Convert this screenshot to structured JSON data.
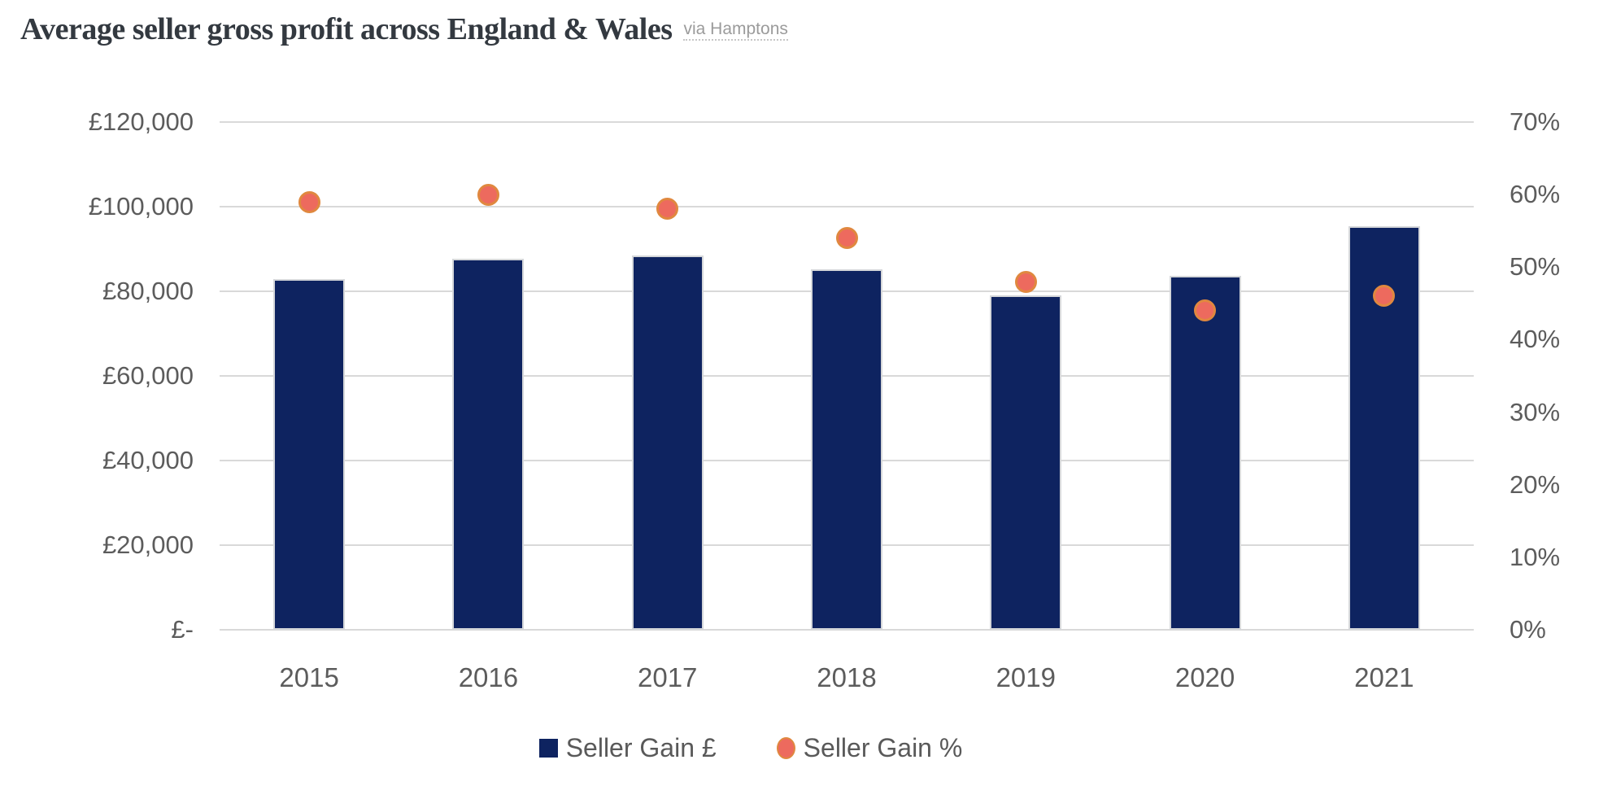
{
  "header": {
    "title": "Average seller gross profit across England & Wales",
    "source_link": "via Hamptons"
  },
  "chart_data": {
    "type": "combo",
    "categories": [
      "2015",
      "2016",
      "2017",
      "2018",
      "2019",
      "2020",
      "2021"
    ],
    "series": [
      {
        "name": "Seller Gain £",
        "type": "bar",
        "axis": "left",
        "values": [
          82900,
          87600,
          88400,
          85100,
          79100,
          83600,
          95400
        ]
      },
      {
        "name": "Seller Gain %",
        "type": "scatter",
        "axis": "right",
        "values": [
          59,
          60,
          58,
          54,
          48,
          44,
          46
        ]
      }
    ],
    "left_axis": {
      "ticks": [
        "£120,000",
        "£100,000",
        "£80,000",
        "£60,000",
        "£40,000",
        "£20,000",
        "£-"
      ],
      "min": 0,
      "max": 120000
    },
    "right_axis": {
      "ticks": [
        "70%",
        "60%",
        "50%",
        "40%",
        "30%",
        "20%",
        "10%",
        "0%"
      ],
      "min": 0,
      "max": 70
    },
    "grid": true,
    "legend_position": "bottom"
  },
  "colors": {
    "bar": "#0e2360",
    "dot_fill": "#ed6a5e",
    "dot_stroke": "#e0883f",
    "grid": "#d9d9d9",
    "axis_text": "#5c5c5c",
    "title_text": "#333940",
    "link_text": "#9b9b9b"
  }
}
